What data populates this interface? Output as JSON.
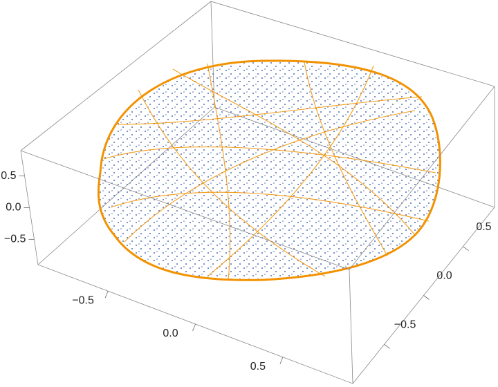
{
  "chart_data": {
    "type": "scatter3d",
    "xlim": [
      -0.9,
      0.9
    ],
    "ylim": [
      -0.9,
      0.9
    ],
    "zlim": [
      -0.9,
      0.9
    ],
    "xticks": [
      {
        "value": -0.5,
        "label": "−0.5"
      },
      {
        "value": 0,
        "label": "0.0"
      },
      {
        "value": 0.5,
        "label": "0.5"
      }
    ],
    "yticks": [
      {
        "value": -0.5,
        "label": "−0.5"
      },
      {
        "value": 0,
        "label": "0.0"
      },
      {
        "value": 0.5,
        "label": "0.5"
      }
    ],
    "zticks": [
      {
        "value": -0.5,
        "label": "−0.5"
      },
      {
        "value": 0,
        "label": "0.0"
      },
      {
        "value": 0.5,
        "label": "0.5"
      }
    ],
    "point_color": "#4a6fb5",
    "curve_color": "#f39200"
  }
}
